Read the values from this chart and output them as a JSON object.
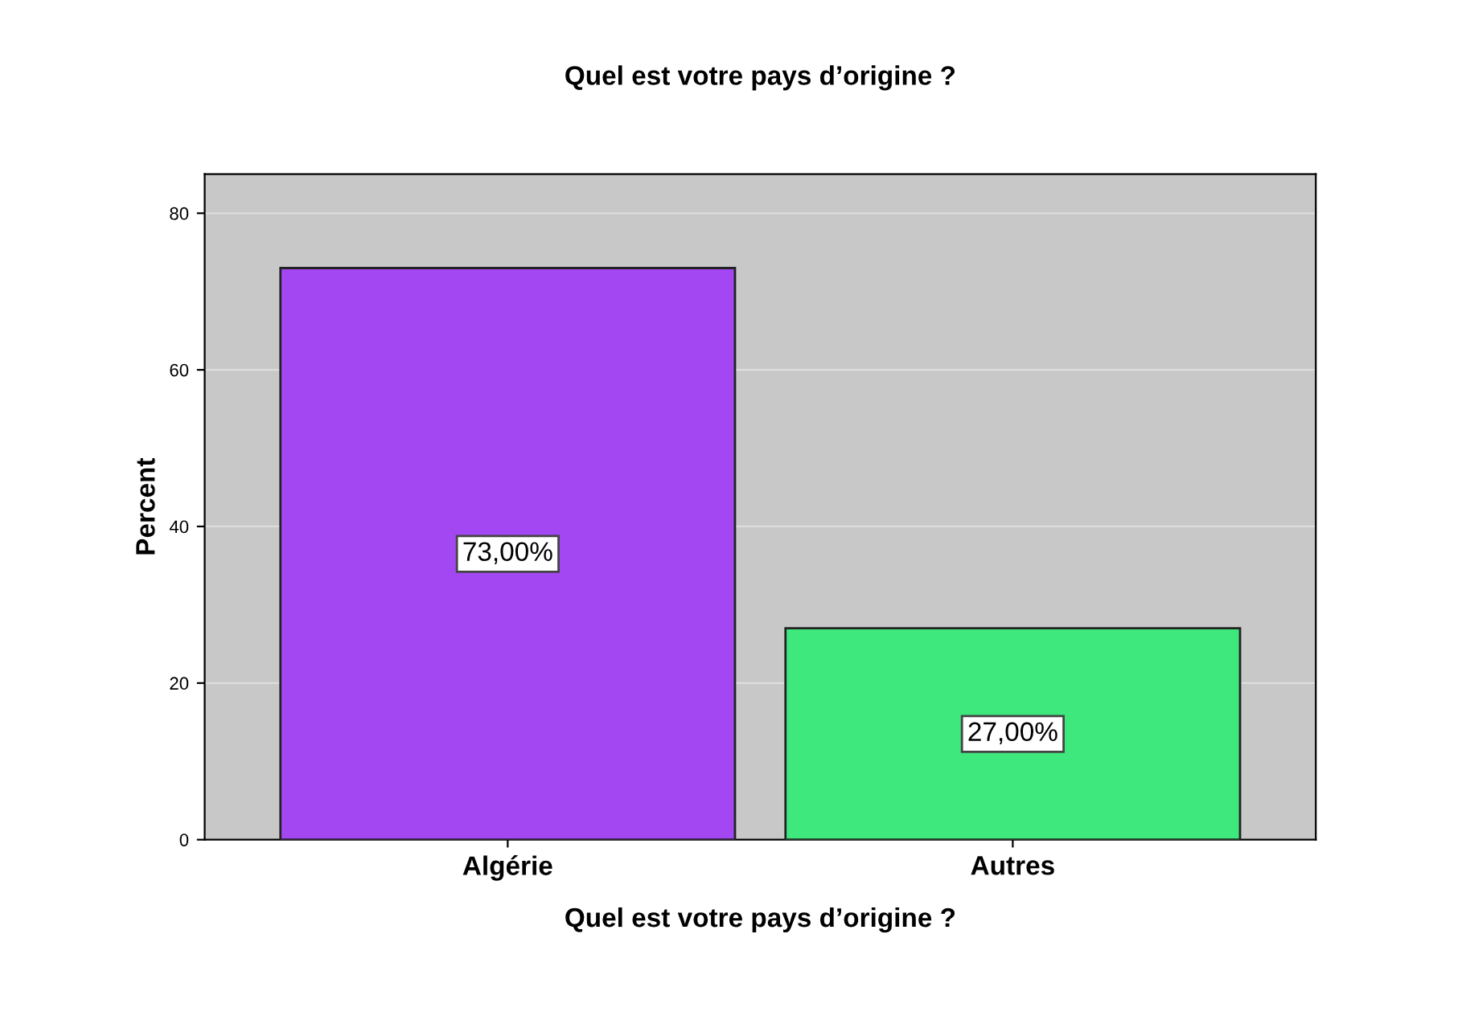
{
  "chart_data": {
    "type": "bar",
    "title": "Quel est votre pays d’origine ?",
    "xlabel": "Quel est votre pays d’origine ?",
    "ylabel": "Percent",
    "categories": [
      "Algérie",
      "Autres"
    ],
    "values": [
      73,
      27
    ],
    "colors": [
      "#a347f2",
      "#3ee87c"
    ],
    "value_labels": [
      "73,00%",
      "27,00%"
    ],
    "ylim": [
      0,
      85
    ],
    "yticks": [
      0,
      20,
      40,
      60,
      80
    ],
    "grid": "y"
  }
}
